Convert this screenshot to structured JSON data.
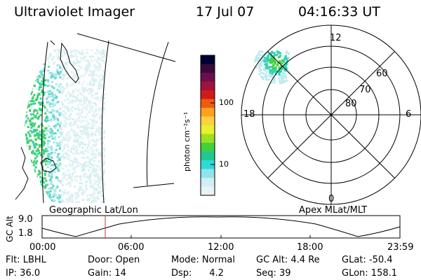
{
  "header": {
    "instrument": "Ultraviolet Imager",
    "date": "17 Jul 07",
    "time": "04:16:33 UT"
  },
  "colorbar": {
    "unit_label": "photon cm⁻²s⁻¹",
    "ticks": [
      "100",
      "10"
    ],
    "colors": [
      "#000033",
      "#3a0a3a",
      "#6b0f4a",
      "#a0123e",
      "#d01b1b",
      "#f05a10",
      "#ffa020",
      "#ffd040",
      "#e8f030",
      "#9ae020",
      "#40d040",
      "#20c890",
      "#30d8d8",
      "#8ee4ee",
      "#cfeff3",
      "#e9f3f4"
    ]
  },
  "polar_plot": {
    "mlt_labels": {
      "top": "12",
      "left": "18",
      "right": "6",
      "bottom": "0"
    },
    "lat_labels": [
      "60",
      "70",
      "80"
    ]
  },
  "map_label": "Geographic Lat/Lon",
  "polar_label": "Apex MLat/MLT",
  "altitude_plot": {
    "axis_label": "GC Alt",
    "y_ticks": [
      "9.0",
      "1.8"
    ],
    "x_ticks": [
      "00:00",
      "06:00",
      "12:00",
      "18:00",
      "23:59"
    ],
    "marker_color": "#c0392b"
  },
  "info": {
    "row1": [
      "Flt: LBHL",
      "Door: Open",
      "Mode: Normal",
      "GC Alt: 4.4 Re",
      "GLat: -50.4"
    ],
    "row2": [
      "IP: 36.0",
      "Gain: 14",
      "Dsp:      4.2",
      "Seq: 39",
      "GLon: 158.1"
    ]
  }
}
